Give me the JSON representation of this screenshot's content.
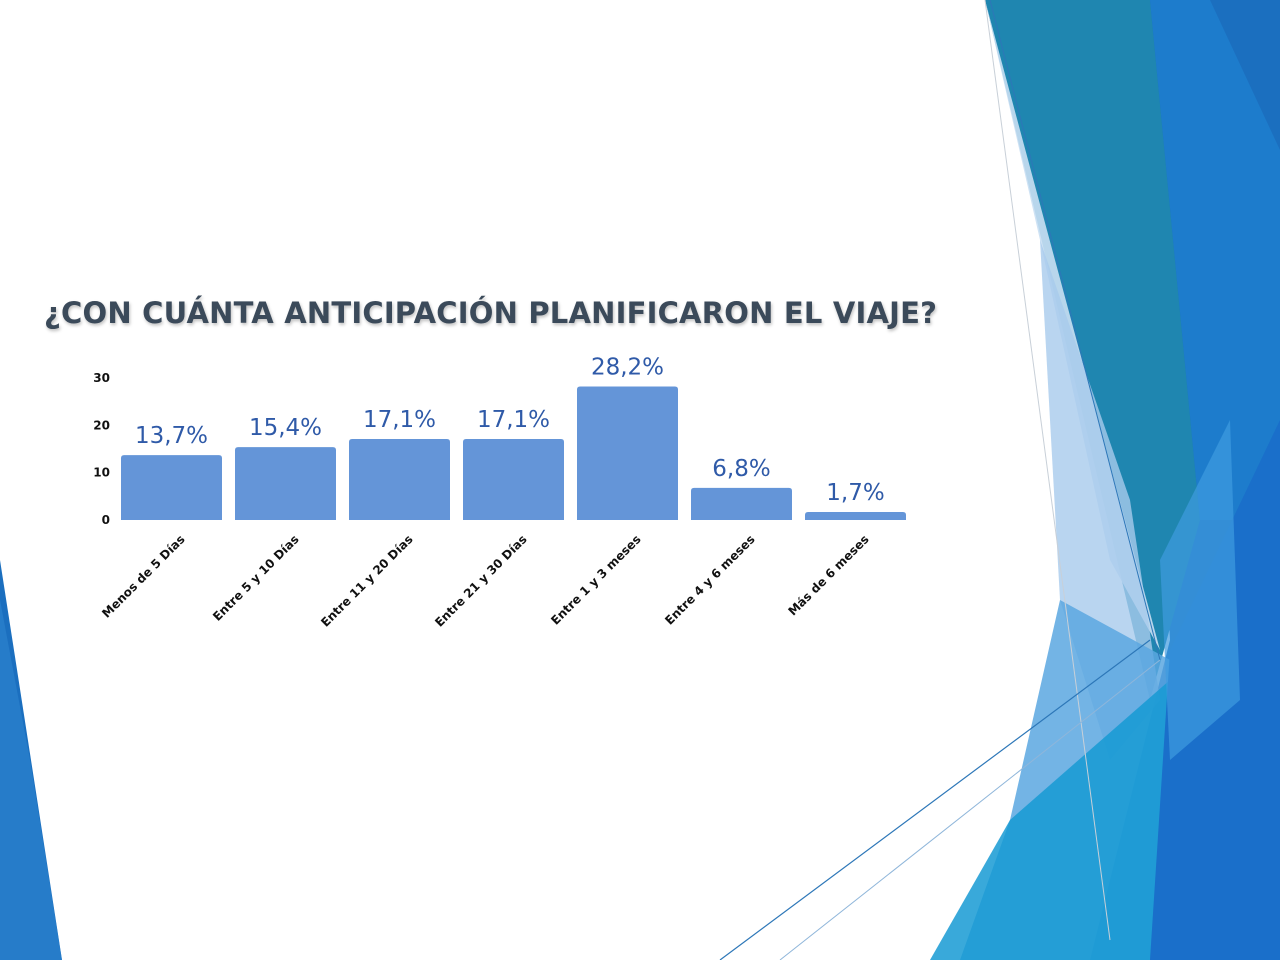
{
  "slide": {
    "colors": {
      "bar": "#6495d8",
      "value_label": "#2f5aa8",
      "title": "#3b4a5a",
      "deco_dark": "#1b6fbf",
      "deco_light": "#c9dff3",
      "deco_teal": "#1f86b0"
    }
  },
  "chart_data": {
    "type": "bar",
    "title": "¿CON CUÁNTA ANTICIPACIÓN PLANIFICARON EL VIAJE?",
    "categories": [
      "Menos de 5 Días",
      "Entre 5 y 10 Días",
      "Entre 11 y 20 Días",
      "Entre 21 y 30 Días",
      "Entre 1 y 3 meses",
      "Entre 4 y 6 meses",
      "Más de 6 meses"
    ],
    "values": [
      13.7,
      15.4,
      17.1,
      17.1,
      28.2,
      6.8,
      1.7
    ],
    "value_labels": [
      "13,7%",
      "15,4%",
      "17,1%",
      "17,1%",
      "28,2%",
      "6,8%",
      "1,7%"
    ],
    "y_ticks": [
      "0",
      "10",
      "20",
      "30"
    ],
    "ylim": [
      0,
      30
    ],
    "xlabel": "",
    "ylabel": "",
    "grid": false,
    "legend": "none"
  }
}
